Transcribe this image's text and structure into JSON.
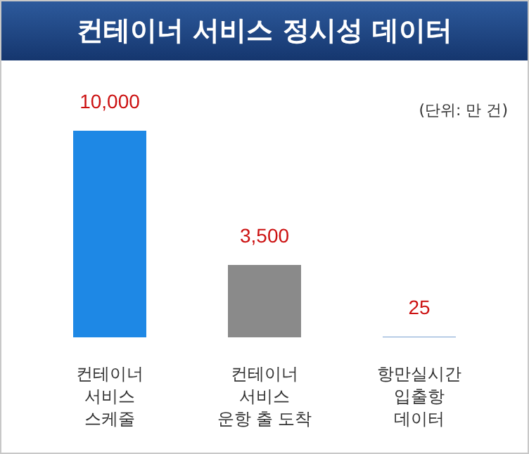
{
  "chart_data": {
    "type": "bar",
    "title": "컨테이너 서비스 정시성 데이터",
    "annotations": [
      "(단위: 만 건)"
    ],
    "categories": [
      "컨테이너\n서비스\n스케줄",
      "컨테이너\n서비스\n운항 출 도착",
      "항만실시간\n입출항\n데이터"
    ],
    "values": [
      10000,
      3500,
      25
    ],
    "colors": [
      "#1e88e5",
      "#8a8a8a",
      "#4a7fc0"
    ],
    "value_labels": [
      "10,000",
      "3,500",
      "25"
    ]
  }
}
